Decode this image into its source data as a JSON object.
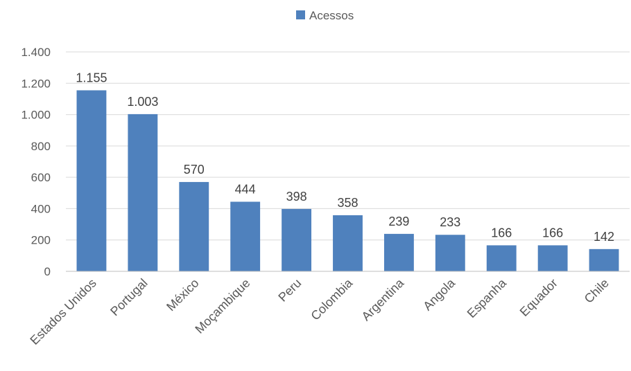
{
  "chart_data": {
    "type": "bar",
    "title": "",
    "xlabel": "",
    "ylabel": "",
    "categories": [
      "Estados Unidos",
      "Portugal",
      "México",
      "Moçambique",
      "Peru",
      "Colombia",
      "Argentina",
      "Angola",
      "Espanha",
      "Equador",
      "Chile"
    ],
    "series": [
      {
        "name": "Acessos",
        "color": "#4f81bd",
        "values": [
          1155,
          1003,
          570,
          444,
          398,
          358,
          239,
          233,
          166,
          166,
          142
        ],
        "labels": [
          "1.155",
          "1.003",
          "570",
          "444",
          "398",
          "358",
          "239",
          "233",
          "166",
          "166",
          "142"
        ]
      }
    ],
    "ylim": [
      0,
      1400
    ],
    "yticks": [
      0,
      200,
      400,
      600,
      800,
      1000,
      1200,
      1400
    ],
    "ytick_labels": [
      "0",
      "200",
      "400",
      "600",
      "800",
      "1.000",
      "1.200",
      "1.400"
    ],
    "grid": true,
    "legend": "top-center"
  }
}
